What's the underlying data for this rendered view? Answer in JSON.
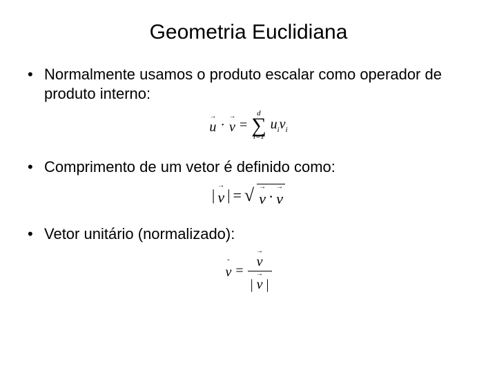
{
  "title": "Geometria Euclidiana",
  "bullets": {
    "b1": "Normalmente usamos o produto escalar como operador de produto interno:",
    "b2": "Comprimento de um vetor é definido como:",
    "b3": "Vetor unitário (normalizado):"
  },
  "formula1": {
    "u": "u",
    "dot": "·",
    "v": "v",
    "eq": "=",
    "sum_top": "d",
    "sum_bot": "i=1",
    "ui": "u",
    "ui_sub": "i",
    "vi": "v",
    "vi_sub": "i"
  },
  "formula2": {
    "bar": "|",
    "v": "v",
    "eq": "=",
    "sqrt": "√",
    "dot": "·"
  },
  "formula3": {
    "vhat": "v",
    "eq": "=",
    "v": "v",
    "bar": "|"
  }
}
